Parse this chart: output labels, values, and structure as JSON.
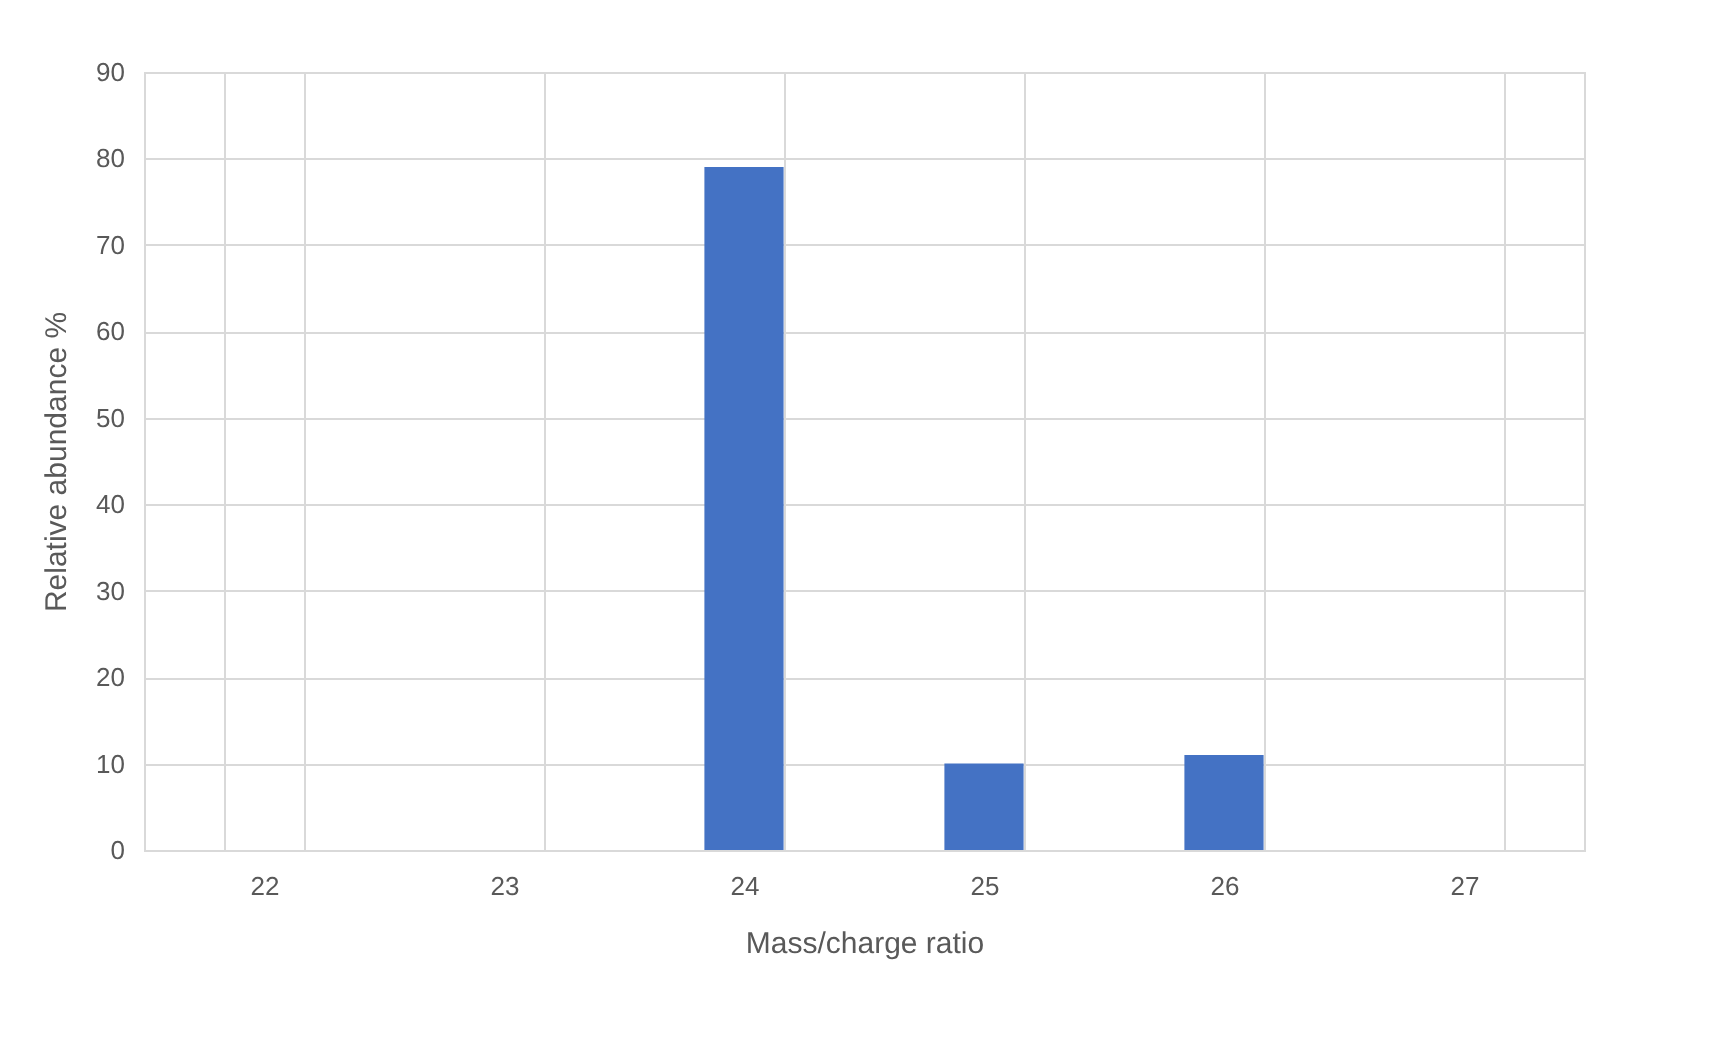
{
  "chart_data": {
    "type": "bar",
    "xlabel": "Mass/charge ratio",
    "ylabel": "Relative abundance %",
    "categories": [
      "22",
      "23",
      "24",
      "25",
      "26",
      "27"
    ],
    "values": [
      0,
      0,
      79,
      10,
      11,
      0
    ],
    "color": "#4472c4",
    "ylim": [
      0,
      90
    ],
    "yticks": [
      0,
      10,
      20,
      30,
      40,
      50,
      60,
      70,
      80,
      90
    ],
    "grid": true
  }
}
